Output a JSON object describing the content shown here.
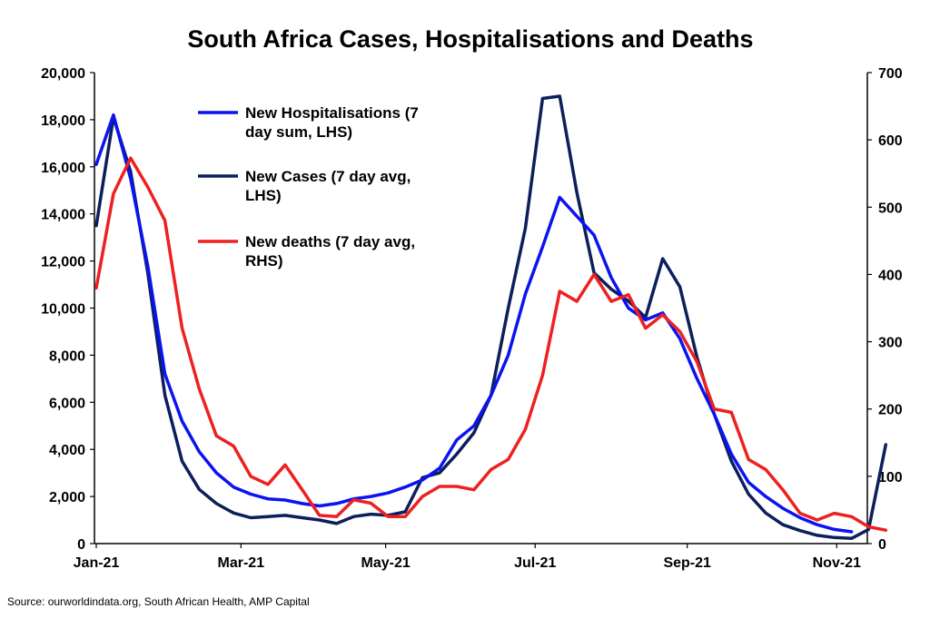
{
  "chart_data": {
    "type": "line",
    "title": "South Africa Cases, Hospitalisations and Deaths",
    "x_axis": {
      "ticks": [
        "Jan-21",
        "Mar-21",
        "May-21",
        "Jul-21",
        "Sep-21",
        "Nov-21"
      ],
      "tick_weeks": [
        0,
        8.43,
        16.86,
        25.57,
        34.43,
        43.14
      ],
      "range_weeks": [
        0,
        44.5
      ]
    },
    "y_left": {
      "min": 0,
      "max": 20000,
      "step": 2000,
      "ticks": [
        "0",
        "2,000",
        "4,000",
        "6,000",
        "8,000",
        "10,000",
        "12,000",
        "14,000",
        "16,000",
        "18,000",
        "20,000"
      ]
    },
    "y_right": {
      "min": 0,
      "max": 700,
      "step": 100,
      "ticks": [
        "0",
        "100",
        "200",
        "300",
        "400",
        "500",
        "600",
        "700"
      ]
    },
    "grid": false,
    "legend_position": "top-left",
    "series": [
      {
        "name": "New Hospitalisations (7 day sum, LHS)",
        "legend_lines": [
          "New Hospitalisations (7",
          "day sum, LHS)"
        ],
        "axis": "left",
        "color": "#0a14f0",
        "x": [
          0,
          1,
          2,
          3,
          4,
          5,
          6,
          7,
          8,
          9,
          10,
          11,
          12,
          13,
          14,
          15,
          16,
          17,
          18,
          19,
          20,
          21,
          22,
          23,
          24,
          25,
          26,
          27,
          28,
          29,
          30,
          31,
          32,
          33,
          34,
          35,
          36,
          37,
          38,
          39,
          40,
          41,
          42,
          43,
          44
        ],
        "y": [
          16100,
          18200,
          15500,
          11800,
          7200,
          5200,
          3900,
          3000,
          2400,
          2100,
          1900,
          1850,
          1700,
          1600,
          1700,
          1900,
          2000,
          2150,
          2400,
          2700,
          3200,
          4400,
          5000,
          6300,
          8000,
          10600,
          12600,
          14700,
          13900,
          13100,
          11300,
          10000,
          9500,
          9800,
          8700,
          7000,
          5500,
          3800,
          2600,
          2000,
          1500,
          1100,
          800,
          600,
          500
        ]
      },
      {
        "name": "New Cases (7 day avg, LHS)",
        "legend_lines": [
          "New Cases (7 day avg,",
          "LHS)"
        ],
        "axis": "left",
        "color": "#0c1f5a",
        "x": [
          0,
          1,
          2,
          3,
          4,
          5,
          6,
          7,
          8,
          9,
          10,
          11,
          12,
          13,
          14,
          15,
          16,
          17,
          18,
          19,
          20,
          21,
          22,
          23,
          24,
          25,
          26,
          27,
          28,
          29,
          30,
          31,
          32,
          33,
          34,
          35,
          36,
          37,
          38,
          39,
          40,
          41,
          42,
          43,
          44,
          45,
          46
        ],
        "y": [
          13500,
          18100,
          15800,
          11500,
          6300,
          3500,
          2300,
          1700,
          1300,
          1100,
          1150,
          1200,
          1100,
          1000,
          850,
          1150,
          1250,
          1200,
          1350,
          2800,
          3000,
          3800,
          4700,
          6300,
          10000,
          13400,
          18900,
          19000,
          14900,
          11500,
          10800,
          10300,
          9600,
          12100,
          10900,
          7900,
          5500,
          3500,
          2100,
          1300,
          800,
          550,
          350,
          260,
          220,
          600,
          4200
        ]
      },
      {
        "name": "New deaths (7 day avg, RHS)",
        "legend_lines": [
          "New deaths (7 day avg,",
          "RHS)"
        ],
        "axis": "right",
        "color": "#ee2020",
        "x": [
          0,
          1,
          2,
          3,
          4,
          5,
          6,
          7,
          8,
          9,
          10,
          11,
          12,
          13,
          14,
          15,
          16,
          17,
          18,
          19,
          20,
          21,
          22,
          23,
          24,
          25,
          26,
          27,
          28,
          29,
          30,
          31,
          32,
          33,
          34,
          35,
          36,
          37,
          38,
          39,
          40,
          41,
          42,
          43,
          44,
          45,
          46
        ],
        "y": [
          380,
          520,
          573,
          530,
          480,
          320,
          230,
          160,
          145,
          100,
          88,
          117,
          80,
          42,
          40,
          65,
          60,
          40,
          40,
          70,
          85,
          85,
          80,
          110,
          125,
          170,
          250,
          375,
          360,
          400,
          360,
          370,
          320,
          340,
          315,
          270,
          200,
          195,
          125,
          110,
          80,
          45,
          35,
          45,
          40,
          25,
          20
        ]
      }
    ]
  },
  "source_text": "Source: ourworldindata.org, South African Health, AMP Capital"
}
